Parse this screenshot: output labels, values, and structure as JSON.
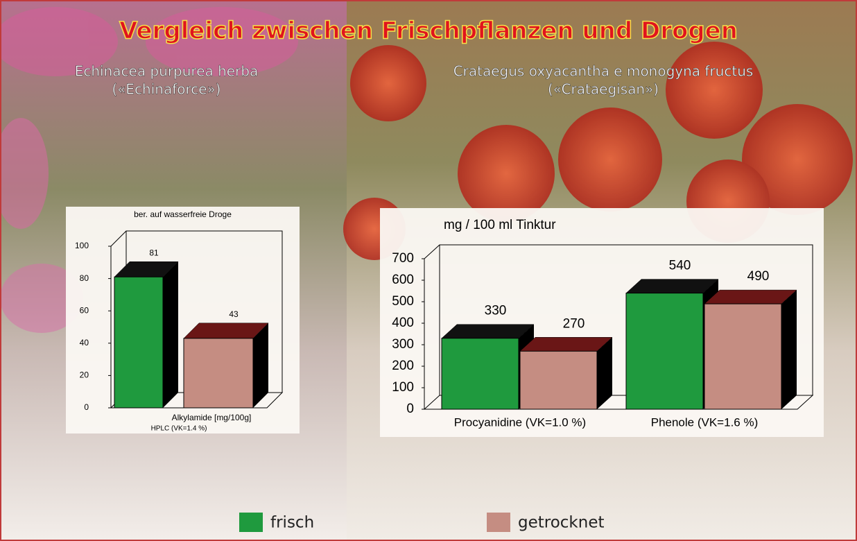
{
  "title": "Vergleich zwischen Frischpflanzen und Drogen",
  "chart_data": [
    {
      "type": "bar3d",
      "title": "Echinacea purpurea herba",
      "subtitle": "(«Echinaforce»)",
      "note": "ber. auf wasserfreie Droge",
      "categories": [
        "Alkylamide [mg/100g]"
      ],
      "x_label": "HPLC (VK=1.4 %)",
      "series": [
        {
          "name": "frisch",
          "color": "#1f9a3e",
          "top_color": "#111111",
          "values": [
            81
          ]
        },
        {
          "name": "getrocknet",
          "color": "#c58d82",
          "top_color": "#6a1616",
          "values": [
            43
          ]
        }
      ],
      "ylim": [
        0,
        100
      ],
      "yticks": [
        0,
        20,
        40,
        60,
        80,
        100
      ]
    },
    {
      "type": "bar3d",
      "title": "Crataegus oxyacantha e monogyna fructus",
      "subtitle": "(«Crataegisan»)",
      "y_label": "mg / 100 ml Tinktur",
      "categories": [
        "Procyanidine (VK=1.0 %)",
        "Phenole (VK=1.6 %)"
      ],
      "series": [
        {
          "color": "#1f9a3e",
          "top_color": "#111111",
          "values": [
            330,
            540
          ]
        },
        {
          "color": "#c58d82",
          "top_color": "#6a1616",
          "values": [
            270,
            490
          ]
        }
      ],
      "ylim": [
        0,
        700
      ],
      "yticks": [
        0,
        100,
        200,
        300,
        400,
        500,
        600,
        700
      ]
    }
  ]
}
